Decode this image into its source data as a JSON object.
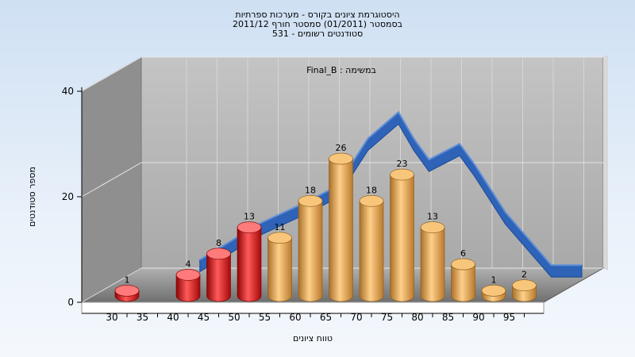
{
  "chart_data": {
    "type": "bar",
    "title_lines": [
      "היסטוגרמת ציונים בקורס - מערכות ספרתיות",
      "בסמסטר  (01/2011)  סמסטר חורף 2011/12",
      "סטודנטים רשומים - 531"
    ],
    "subtitle": "במשימה : Final_B",
    "xlabel": "טווח ציונים",
    "ylabel": "מספר סטודנטים",
    "ylim": [
      0,
      40
    ],
    "y_ticks": [
      0,
      20,
      40
    ],
    "x_ticks": [
      "30",
      "35",
      "40",
      "45",
      "50",
      "55",
      "60",
      "65",
      "70",
      "75",
      "80",
      "85",
      "90",
      "95"
    ],
    "categories": [
      "30",
      "40",
      "45",
      "50",
      "55",
      "60",
      "65",
      "70",
      "75",
      "80",
      "85",
      "90",
      "95"
    ],
    "values": [
      1,
      4,
      8,
      13,
      11,
      18,
      26,
      18,
      23,
      13,
      6,
      1,
      2
    ],
    "failing_below": 55,
    "colors": {
      "failing": "#e01818",
      "passing": "#e8a84c",
      "curve": "#2e63b8",
      "floor": "#8a8a8a",
      "back_wall": "#b4b4b4",
      "side_wall": "#8f8f8f"
    },
    "grid": true,
    "curve_series": {
      "type": "area",
      "points": [
        {
          "x": 40,
          "y": 4
        },
        {
          "x": 50,
          "y": 11
        },
        {
          "x": 57.5,
          "y": 15
        },
        {
          "x": 62.5,
          "y": 18
        },
        {
          "x": 67.5,
          "y": 27
        },
        {
          "x": 72.5,
          "y": 32
        },
        {
          "x": 75,
          "y": 27
        },
        {
          "x": 77.5,
          "y": 23
        },
        {
          "x": 82.5,
          "y": 26
        },
        {
          "x": 85,
          "y": 22
        },
        {
          "x": 90,
          "y": 13
        },
        {
          "x": 97.5,
          "y": 3
        },
        {
          "x": 102.5,
          "y": 3
        }
      ]
    }
  }
}
